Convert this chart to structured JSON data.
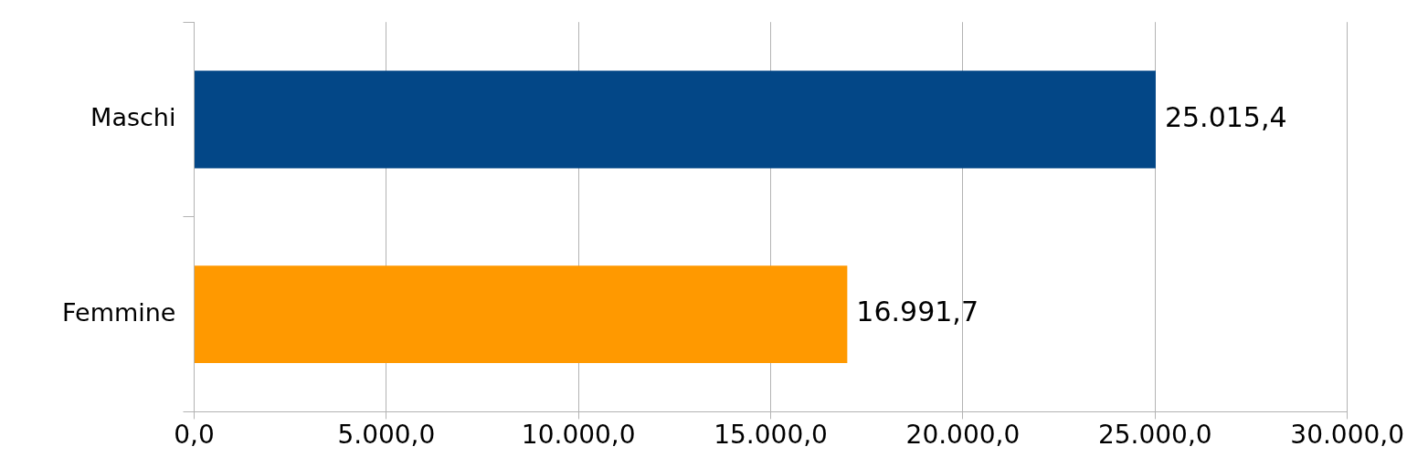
{
  "chart_data": {
    "type": "bar",
    "orientation": "horizontal",
    "categories": [
      "Maschi",
      "Femmine"
    ],
    "series": [
      {
        "colors": [
          "#034787",
          "#ff9900"
        ],
        "values": [
          25015.4,
          16991.7
        ],
        "value_labels": [
          "25.015,4",
          "16.991,7"
        ]
      }
    ],
    "xlim": [
      0,
      30000
    ],
    "xticks": [
      {
        "value": 0,
        "label": "0,0"
      },
      {
        "value": 5000,
        "label": "5.000,0"
      },
      {
        "value": 10000,
        "label": "10.000,0"
      },
      {
        "value": 15000,
        "label": "15.000,0"
      },
      {
        "value": 20000,
        "label": "20.000,0"
      },
      {
        "value": 25000,
        "label": "25.000,0"
      },
      {
        "value": 30000,
        "label": "30.000,0"
      }
    ],
    "grid": "x"
  }
}
